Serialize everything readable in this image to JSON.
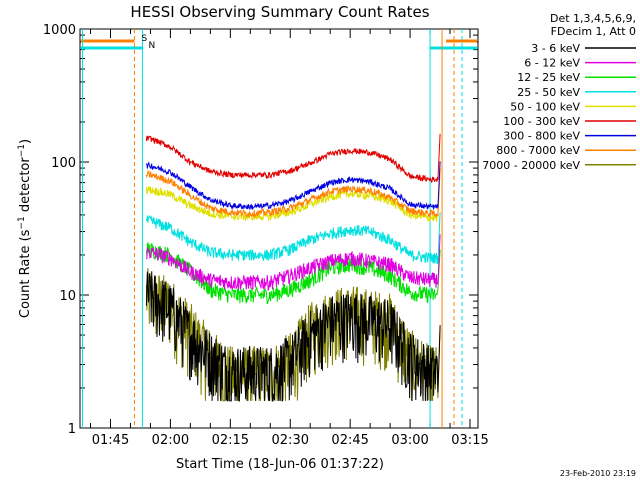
{
  "chart_data": {
    "type": "line",
    "title": "HESSI Observing Summary Count Rates",
    "xlabel": "Start Time (18-Jun-06 01:37:22)",
    "ylabel": "Count Rate (s⁻¹ detector⁻¹)",
    "y_scale": "log",
    "ylim": [
      1,
      1000
    ],
    "xlim": [
      "01:37:22",
      "03:17"
    ],
    "x_tick_labels": [
      "01:45",
      "02:00",
      "02:15",
      "02:30",
      "02:45",
      "03:00",
      "03:15"
    ],
    "y_tick_labels": [
      "1",
      "10",
      "100",
      "1000"
    ],
    "grid": false,
    "legend_position": "right",
    "legend_header": [
      "Det 1,3,4,5,6,9,",
      "FDecim 1, Att 0"
    ],
    "markers": [
      {
        "label": "S",
        "color": "#ff8000"
      },
      {
        "label": "N",
        "color": "#00e0e0"
      }
    ],
    "x": [
      "01:55",
      "02:00",
      "02:05",
      "02:10",
      "02:15",
      "02:20",
      "02:25",
      "02:30",
      "02:35",
      "02:40",
      "02:45",
      "02:50",
      "02:55",
      "03:00",
      "03:05"
    ],
    "series": [
      {
        "name": "3 - 6 keV",
        "color": "#000000",
        "values": [
          10,
          8,
          5,
          3.5,
          2.7,
          2.7,
          2.7,
          3.2,
          5,
          6.5,
          7,
          6.5,
          6,
          3.5,
          2.7
        ]
      },
      {
        "name": "6 - 12 keV",
        "color": "#e000e0",
        "values": [
          21,
          19,
          15,
          13,
          12.5,
          12.5,
          12.5,
          14,
          16,
          18,
          19,
          18,
          17,
          13.5,
          13
        ]
      },
      {
        "name": "12 - 25 keV",
        "color": "#00e000",
        "values": [
          22,
          20,
          15,
          11,
          10,
          10,
          10,
          11,
          13,
          16,
          17,
          16,
          14,
          10.5,
          10
        ]
      },
      {
        "name": "25 - 50 keV",
        "color": "#00e0e0",
        "values": [
          36,
          32,
          25,
          21,
          20,
          20,
          20,
          22,
          26,
          29,
          31,
          30,
          26,
          20,
          19
        ]
      },
      {
        "name": "50 - 100 keV",
        "color": "#e0e000",
        "values": [
          62,
          57,
          47,
          41,
          39,
          39,
          39,
          42,
          48,
          55,
          58,
          56,
          51,
          40,
          38
        ]
      },
      {
        "name": "100 - 300 keV",
        "color": "#e00000",
        "values": [
          150,
          130,
          100,
          85,
          80,
          80,
          80,
          86,
          98,
          115,
          122,
          118,
          105,
          78,
          74
        ]
      },
      {
        "name": "300 - 800 keV",
        "color": "#0000e0",
        "values": [
          94,
          84,
          65,
          52,
          47,
          46,
          47,
          51,
          60,
          70,
          74,
          71,
          63,
          48,
          46
        ]
      },
      {
        "name": "800 - 7000 keV",
        "color": "#ff8000",
        "values": [
          80,
          72,
          56,
          45,
          42,
          41,
          42,
          45,
          52,
          60,
          63,
          61,
          54,
          43,
          41
        ]
      },
      {
        "name": "7000 - 20000 keV",
        "color": "#808000",
        "values": [
          10,
          8.5,
          5.5,
          3.5,
          2.6,
          2.6,
          2.6,
          3.3,
          5.5,
          7,
          7.5,
          7,
          6.5,
          3.5,
          2.6
        ]
      }
    ]
  },
  "footer": {
    "stamp": "23-Feb-2010 23:19"
  }
}
